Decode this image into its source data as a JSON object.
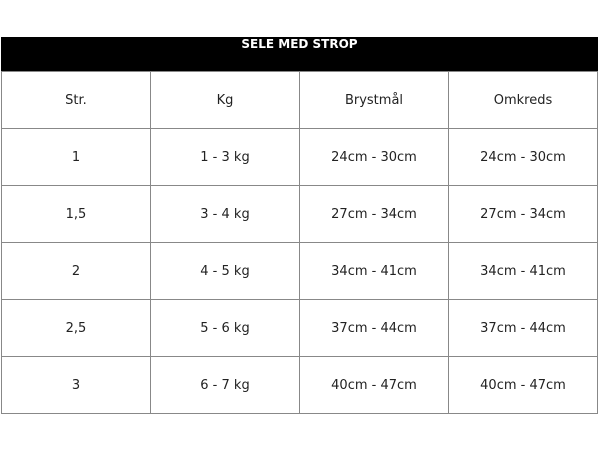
{
  "title": "SELE MED STROP",
  "headers": [
    "Str.",
    "Kg",
    "Brystmål",
    "Omkreds"
  ],
  "rows": [
    [
      "1",
      "1 - 3 kg",
      "24cm - 30cm",
      "24cm - 30cm"
    ],
    [
      "1,5",
      "3 - 4 kg",
      "27cm - 34cm",
      "27cm - 34cm"
    ],
    [
      "2",
      "4 - 5 kg",
      "34cm - 41cm",
      "34cm - 41cm"
    ],
    [
      "2,5",
      "5 - 6 kg",
      "37cm - 44cm",
      "37cm - 44cm"
    ],
    [
      "3",
      "6 - 7 kg",
      "40cm - 47cm",
      "40cm - 47cm"
    ]
  ]
}
